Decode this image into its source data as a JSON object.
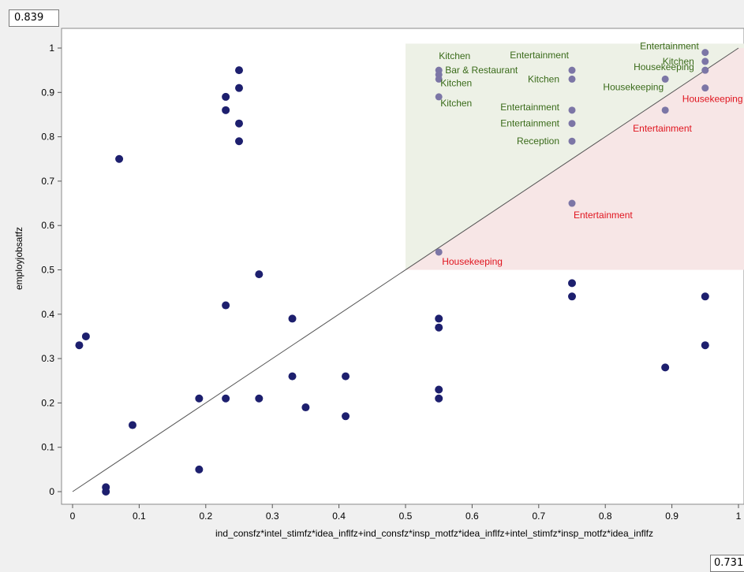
{
  "readouts": {
    "y_value": "0.839",
    "x_value": "0.731"
  },
  "colors": {
    "point": "#1d1f6e",
    "point_highlight": "#7c76a6",
    "label_green": "#3a6b1a",
    "label_red": "#e0141e",
    "region_green": "#edf1e6",
    "region_red": "#f7e6e6",
    "diagonal": "#555555"
  },
  "chart_data": {
    "type": "scatter",
    "xlabel": "ind_consfz*intel_stimfz*idea_inflfz+ind_consfz*insp_motfz*idea_inflfz+intel_stimfz*insp_motfz*idea_inflfz",
    "ylabel": "employjobsatfz",
    "xlim": [
      0,
      1
    ],
    "ylim": [
      0,
      1
    ],
    "x_ticks": [
      "0",
      "0.1",
      "0.2",
      "0.3",
      "0.4",
      "0.5",
      "0.6",
      "0.7",
      "0.8",
      "0.9",
      "1"
    ],
    "y_ticks": [
      "0",
      "0.1",
      "0.2",
      "0.3",
      "0.4",
      "0.5",
      "0.6",
      "0.7",
      "0.8",
      "0.9",
      "1"
    ],
    "diagonal": [
      [
        0,
        0
      ],
      [
        1,
        1
      ]
    ],
    "regions": [
      {
        "name": "consistent",
        "x": [
          0.5,
          1
        ],
        "y_from_diagonal_to": 1
      },
      {
        "name": "inconsistent",
        "x": [
          0.5,
          1
        ],
        "y_from": 0.5,
        "y_to_diagonal": true
      }
    ],
    "points": [
      {
        "x": 0.01,
        "y": 0.33
      },
      {
        "x": 0.02,
        "y": 0.35
      },
      {
        "x": 0.05,
        "y": 0.01
      },
      {
        "x": 0.05,
        "y": 0.0
      },
      {
        "x": 0.07,
        "y": 0.75
      },
      {
        "x": 0.09,
        "y": 0.15
      },
      {
        "x": 0.19,
        "y": 0.21
      },
      {
        "x": 0.19,
        "y": 0.05
      },
      {
        "x": 0.23,
        "y": 0.89
      },
      {
        "x": 0.23,
        "y": 0.86
      },
      {
        "x": 0.23,
        "y": 0.42
      },
      {
        "x": 0.23,
        "y": 0.21
      },
      {
        "x": 0.25,
        "y": 0.95
      },
      {
        "x": 0.25,
        "y": 0.91
      },
      {
        "x": 0.25,
        "y": 0.83
      },
      {
        "x": 0.25,
        "y": 0.79
      },
      {
        "x": 0.28,
        "y": 0.49
      },
      {
        "x": 0.28,
        "y": 0.21
      },
      {
        "x": 0.33,
        "y": 0.39
      },
      {
        "x": 0.33,
        "y": 0.26
      },
      {
        "x": 0.35,
        "y": 0.19
      },
      {
        "x": 0.41,
        "y": 0.26
      },
      {
        "x": 0.41,
        "y": 0.17
      },
      {
        "x": 0.55,
        "y": 0.39
      },
      {
        "x": 0.55,
        "y": 0.37
      },
      {
        "x": 0.55,
        "y": 0.23
      },
      {
        "x": 0.55,
        "y": 0.21
      },
      {
        "x": 0.75,
        "y": 0.47
      },
      {
        "x": 0.75,
        "y": 0.44
      },
      {
        "x": 0.89,
        "y": 0.28
      },
      {
        "x": 0.95,
        "y": 0.44
      },
      {
        "x": 0.95,
        "y": 0.33
      },
      {
        "x": 0.55,
        "y": 0.95,
        "label": "Kitchen",
        "group": "green"
      },
      {
        "x": 0.55,
        "y": 0.94,
        "label": "Bar & Restaurant",
        "group": "green"
      },
      {
        "x": 0.55,
        "y": 0.93,
        "label": "Kitchen",
        "group": "green"
      },
      {
        "x": 0.55,
        "y": 0.89,
        "label": "Kitchen",
        "group": "green"
      },
      {
        "x": 0.75,
        "y": 0.95,
        "label": "Entertainment",
        "group": "green"
      },
      {
        "x": 0.75,
        "y": 0.93,
        "label": "Kitchen",
        "group": "green"
      },
      {
        "x": 0.75,
        "y": 0.86,
        "label": "Entertainment",
        "group": "green"
      },
      {
        "x": 0.75,
        "y": 0.83,
        "label": "Entertainment",
        "group": "green"
      },
      {
        "x": 0.75,
        "y": 0.79,
        "label": "Reception",
        "group": "green"
      },
      {
        "x": 0.89,
        "y": 0.93,
        "label": "Housekeeping",
        "group": "green"
      },
      {
        "x": 0.95,
        "y": 0.99,
        "label": "Entertainment",
        "group": "green"
      },
      {
        "x": 0.95,
        "y": 0.97,
        "label": "Kitchen",
        "group": "green"
      },
      {
        "x": 0.95,
        "y": 0.95,
        "label": "Housekeeping",
        "group": "green"
      },
      {
        "x": 0.55,
        "y": 0.54,
        "label": "Housekeeping",
        "group": "red"
      },
      {
        "x": 0.75,
        "y": 0.65,
        "label": "Entertainment",
        "group": "red"
      },
      {
        "x": 0.89,
        "y": 0.86,
        "label": "Entertainment",
        "group": "red"
      },
      {
        "x": 0.95,
        "y": 0.91,
        "label": "Housekeeping",
        "group": "red"
      }
    ]
  }
}
